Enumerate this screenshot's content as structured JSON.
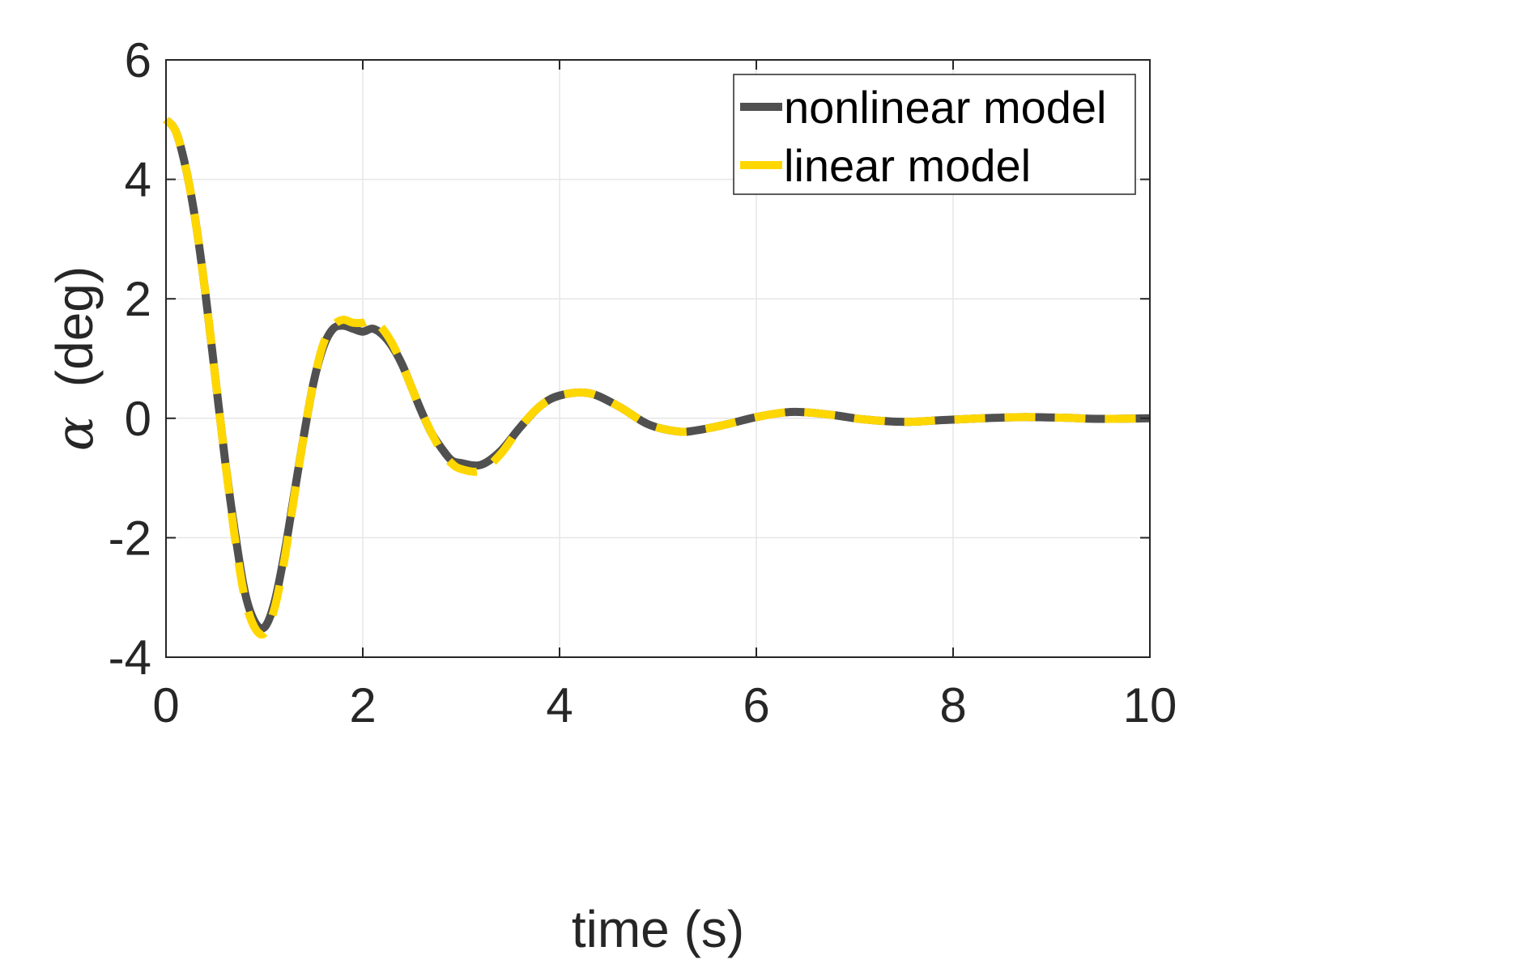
{
  "chart_data": {
    "type": "line",
    "xlabel": "time (s)",
    "ylabel_symbol": "α",
    "ylabel": "(deg)",
    "xlim": [
      0,
      10
    ],
    "ylim": [
      -4,
      6
    ],
    "xticks": [
      "0",
      "2",
      "4",
      "6",
      "8",
      "10"
    ],
    "yticks": [
      "-4",
      "-2",
      "0",
      "2",
      "4",
      "6"
    ],
    "grid": true,
    "legend_position": "top-right",
    "series": [
      {
        "name": "nonlinear model",
        "color": "#505050",
        "style": "solid",
        "x": [
          0,
          0.1,
          0.2,
          0.3,
          0.4,
          0.5,
          0.6,
          0.7,
          0.8,
          0.9,
          1.0,
          1.1,
          1.2,
          1.3,
          1.4,
          1.5,
          1.6,
          1.7,
          1.8,
          1.9,
          2.0,
          2.1,
          2.2,
          2.3,
          2.4,
          2.5,
          2.6,
          2.7,
          2.8,
          2.9,
          3.0,
          3.2,
          3.4,
          3.6,
          3.8,
          4.0,
          4.3,
          4.6,
          4.9,
          5.2,
          5.4,
          5.7,
          6.0,
          6.3,
          6.5,
          6.8,
          7.1,
          7.5,
          7.9,
          8.3,
          8.7,
          9.1,
          9.5,
          10.0
        ],
        "y": [
          5.0,
          4.8,
          4.2,
          3.3,
          2.1,
          0.7,
          -0.7,
          -1.9,
          -2.9,
          -3.4,
          -3.5,
          -3.1,
          -2.3,
          -1.3,
          -0.3,
          0.6,
          1.2,
          1.5,
          1.55,
          1.5,
          1.45,
          1.5,
          1.4,
          1.2,
          0.9,
          0.5,
          0.1,
          -0.25,
          -0.5,
          -0.7,
          -0.75,
          -0.78,
          -0.55,
          -0.15,
          0.2,
          0.38,
          0.42,
          0.2,
          -0.1,
          -0.22,
          -0.2,
          -0.1,
          0.02,
          0.1,
          0.1,
          0.05,
          -0.02,
          -0.06,
          -0.03,
          0.0,
          0.02,
          0.01,
          -0.01,
          0.0
        ]
      },
      {
        "name": "linear model",
        "color": "#FFD700",
        "style": "dashed",
        "x": [
          0,
          0.1,
          0.2,
          0.3,
          0.4,
          0.5,
          0.6,
          0.7,
          0.8,
          0.9,
          1.0,
          1.1,
          1.2,
          1.3,
          1.4,
          1.5,
          1.6,
          1.7,
          1.8,
          1.9,
          2.0,
          2.1,
          2.2,
          2.3,
          2.4,
          2.5,
          2.6,
          2.7,
          2.8,
          2.9,
          3.0,
          3.2,
          3.4,
          3.6,
          3.8,
          4.0,
          4.3,
          4.6,
          4.9,
          5.2,
          5.4,
          5.7,
          6.0,
          6.3,
          6.5,
          6.8,
          7.1,
          7.5,
          7.9,
          8.3,
          8.7,
          9.1,
          9.5,
          10.0
        ],
        "y": [
          5.0,
          4.8,
          4.2,
          3.3,
          2.1,
          0.7,
          -0.7,
          -2.0,
          -3.0,
          -3.5,
          -3.6,
          -3.2,
          -2.4,
          -1.35,
          -0.3,
          0.6,
          1.25,
          1.55,
          1.65,
          1.6,
          1.6,
          1.65,
          1.5,
          1.25,
          0.9,
          0.5,
          0.1,
          -0.25,
          -0.55,
          -0.75,
          -0.85,
          -0.88,
          -0.6,
          -0.15,
          0.2,
          0.38,
          0.42,
          0.2,
          -0.1,
          -0.22,
          -0.2,
          -0.1,
          0.02,
          0.1,
          0.1,
          0.05,
          -0.02,
          -0.06,
          -0.03,
          0.0,
          0.02,
          0.01,
          -0.01,
          0.0
        ]
      }
    ]
  }
}
